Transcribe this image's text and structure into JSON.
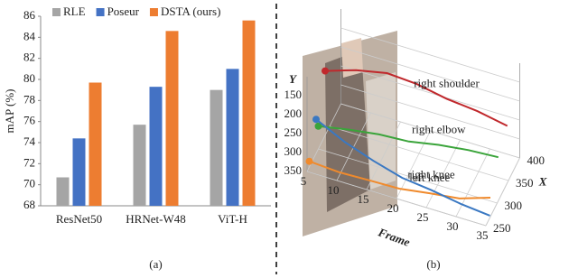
{
  "chart_data": [
    {
      "type": "bar",
      "y_label": "mAP (%)",
      "caption": "(a)",
      "categories": [
        "ResNet50",
        "HRNet-W48",
        "ViT-H"
      ],
      "series": [
        {
          "name": "RLE",
          "color": "#a5a5a5",
          "values": [
            70.7,
            75.7,
            79.0
          ]
        },
        {
          "name": "Poseur",
          "color": "#4472c4",
          "values": [
            74.4,
            79.3,
            81.0
          ]
        },
        {
          "name": "DSTA (ours)",
          "color": "#ed7d31",
          "values": [
            79.7,
            84.6,
            85.6
          ]
        }
      ],
      "ylim": [
        68,
        86
      ],
      "yticks": [
        68,
        70,
        72,
        74,
        76,
        78,
        80,
        82,
        84,
        86
      ]
    },
    {
      "type": "line3d",
      "caption": "(b)",
      "x_label": "Frame",
      "y_label": "Y",
      "z_label": "X",
      "x": [
        5,
        10,
        15,
        20,
        25,
        30,
        35
      ],
      "xlim": [
        5,
        35
      ],
      "xticks": [
        5,
        10,
        15,
        20,
        25,
        30,
        35
      ],
      "ylim": [
        350,
        100
      ],
      "yticks": [
        150,
        200,
        250,
        300,
        350
      ],
      "zlim": [
        250,
        400
      ],
      "zticks": [
        250,
        300,
        350,
        400
      ],
      "series": [
        {
          "name": "right shoulder",
          "color": "#c0282c",
          "values": [
            180,
            160,
            150,
            155,
            170,
            185,
            200
          ],
          "depth": [
            330,
            335,
            340,
            340,
            340,
            345,
            345
          ]
        },
        {
          "name": "right elbow",
          "color": "#3aa43a",
          "values": [
            290,
            275,
            270,
            265,
            250,
            240,
            235
          ],
          "depth": [
            300,
            300,
            305,
            305,
            305,
            305,
            305
          ]
        },
        {
          "name": "left knee",
          "color": "#f08a2c",
          "values": [
            335,
            340,
            340,
            338,
            330,
            320,
            300
          ],
          "depth": [
            260,
            260,
            262,
            262,
            265,
            265,
            270
          ]
        },
        {
          "name": "right knee",
          "color": "#3a78c2",
          "values": [
            260,
            290,
            310,
            325,
            330,
            340,
            345
          ],
          "depth": [
            290,
            285,
            280,
            275,
            272,
            270,
            268
          ]
        }
      ]
    }
  ]
}
